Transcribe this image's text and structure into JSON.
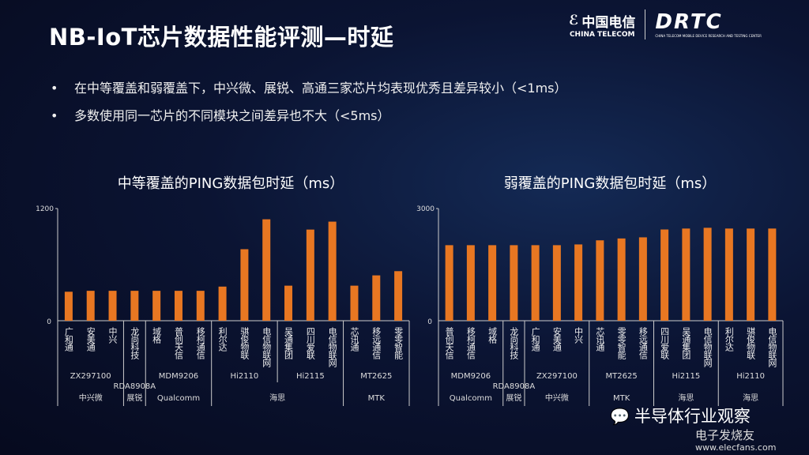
{
  "title": "NB-IoT芯片数据性能评测—时延",
  "bullets": [
    "在中等覆盖和弱覆盖下，中兴微、展锐、高通三家芯片均表现优秀且差异较小（<1ms）",
    "多数使用同一芯片的不同模块之间差异也不大（<5ms）"
  ],
  "logos": {
    "china_telecom_cn": "中国电信",
    "china_telecom_en": "CHINA TELECOM",
    "drtc": "DRTC",
    "drtc_sub": "CHINA TELECOM MOBILE DEVICE RESEARCH AND TESTING CENTER"
  },
  "watermark": {
    "wechat": "半导体行业观察",
    "elecfans": "电子发烧友",
    "url": "www.elecfans.com"
  },
  "colors": {
    "bar": "#e87722",
    "background": "#0b1433"
  },
  "chart_data": [
    {
      "type": "bar",
      "title": "中等覆盖的PING数据包时延（ms）",
      "ylim": [
        0,
        1200
      ],
      "yticks": [
        "0",
        "1200"
      ],
      "categories": [
        "广和通",
        "安美通",
        "中兴",
        "龙尚科技",
        "域格",
        "普创天信",
        "移柯通信",
        "利尔达",
        "骐俊物联",
        "电信物联网",
        "吴通集团",
        "四川爱联",
        "电信物联网",
        "芯讯通",
        "移远通信",
        "零零智能"
      ],
      "values": [
        310,
        320,
        320,
        320,
        320,
        320,
        320,
        365,
        765,
        1085,
        375,
        975,
        1060,
        375,
        485,
        530
      ],
      "chip_groups": [
        {
          "label": "ZX297100",
          "count": 3
        },
        {
          "label": "RDA8908A",
          "count": 1
        },
        {
          "label": "MDM9206",
          "count": 3
        },
        {
          "label": "Hi2110",
          "count": 3
        },
        {
          "label": "Hi2115",
          "count": 3
        },
        {
          "label": "MT2625",
          "count": 3
        }
      ],
      "vendor_groups": [
        {
          "label": "中兴微",
          "count": 3
        },
        {
          "label": "展锐",
          "count": 1
        },
        {
          "label": "Qualcomm",
          "count": 3
        },
        {
          "label": "海思",
          "count": 6
        },
        {
          "label": "MTK",
          "count": 3
        }
      ]
    },
    {
      "type": "bar",
      "title": "弱覆盖的PING数据包时延（ms）",
      "ylim": [
        0,
        3000
      ],
      "yticks": [
        "0",
        "3000"
      ],
      "categories": [
        "普创天信",
        "移柯通信",
        "域格",
        "龙尚科技",
        "广和通",
        "安美通",
        "中兴",
        "芯讯通",
        "零零智能",
        "移远通信",
        "四川爱联",
        "吴通集团",
        "电信物联网",
        "利尔达",
        "骐俊物联",
        "电信物联网"
      ],
      "values": [
        2020,
        2020,
        2020,
        2020,
        2020,
        2020,
        2040,
        2150,
        2200,
        2230,
        2440,
        2465,
        2485,
        2465,
        2465,
        2465
      ],
      "chip_groups": [
        {
          "label": "MDM9206",
          "count": 3
        },
        {
          "label": "RDA8908A",
          "count": 1
        },
        {
          "label": "ZX297100",
          "count": 3
        },
        {
          "label": "MT2625",
          "count": 3
        },
        {
          "label": "Hi2115",
          "count": 3
        },
        {
          "label": "Hi2110",
          "count": 3
        }
      ],
      "vendor_groups": [
        {
          "label": "Qualcomm",
          "count": 3
        },
        {
          "label": "展锐",
          "count": 1
        },
        {
          "label": "中兴微",
          "count": 3
        },
        {
          "label": "MTK",
          "count": 3
        },
        {
          "label": "海思",
          "count": 3
        },
        {
          "label": "海思",
          "count": 3
        }
      ]
    }
  ]
}
